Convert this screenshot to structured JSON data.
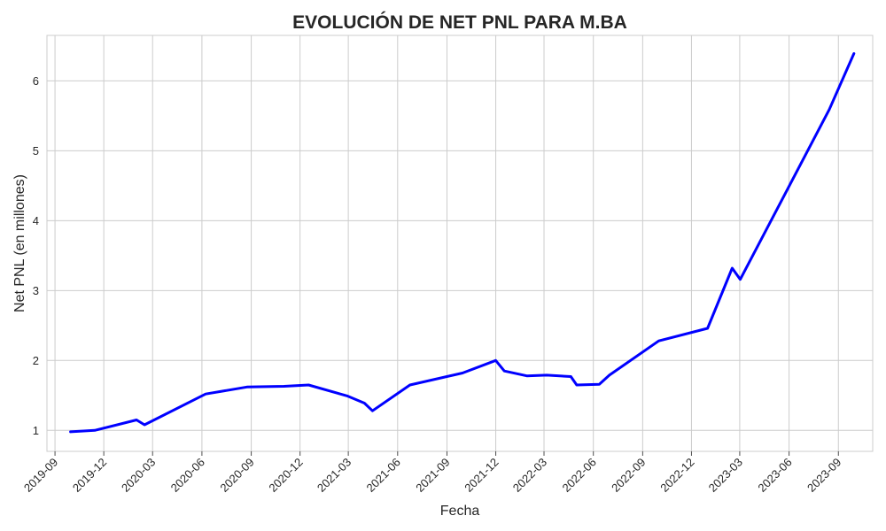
{
  "chart_data": {
    "type": "line",
    "title": "EVOLUCIÓN DE NET PNL PARA M.BA",
    "xlabel": "Fecha",
    "ylabel": "Net PNL (en millones)",
    "x_tick_labels": [
      "2019-09",
      "2019-12",
      "2020-03",
      "2020-06",
      "2020-09",
      "2020-12",
      "2021-03",
      "2021-06",
      "2021-09",
      "2021-12",
      "2022-03",
      "2022-06",
      "2022-09",
      "2022-12",
      "2023-03",
      "2023-06",
      "2023-09"
    ],
    "y_ticks": [
      1,
      2,
      3,
      4,
      5,
      6
    ],
    "xlim": [
      "2019-08-17",
      "2023-11-04"
    ],
    "ylim": [
      0.7,
      6.65
    ],
    "grid": true,
    "line_color": "#0000ff",
    "series": [
      {
        "x": [
          "2019-09-30",
          "2019-11-14",
          "2020-01-31",
          "2020-02-15",
          "2020-06-08",
          "2020-08-24",
          "2020-11-01",
          "2020-12-17",
          "2021-02-28",
          "2021-03-31",
          "2021-04-15",
          "2021-06-24",
          "2021-09-30",
          "2021-12-01",
          "2021-12-17",
          "2022-01-28",
          "2022-03-06",
          "2022-04-20",
          "2022-05-01",
          "2022-06-12",
          "2022-07-01",
          "2022-10-01",
          "2022-12-31",
          "2023-02-15",
          "2023-03-02",
          "2023-08-15",
          "2023-09-30"
        ],
        "values": [
          0.98,
          1.0,
          1.15,
          1.08,
          1.52,
          1.62,
          1.63,
          1.65,
          1.49,
          1.39,
          1.28,
          1.65,
          1.82,
          2.0,
          1.85,
          1.78,
          1.79,
          1.77,
          1.65,
          1.66,
          1.79,
          2.28,
          2.46,
          3.32,
          3.16,
          5.59,
          6.39
        ]
      }
    ]
  }
}
